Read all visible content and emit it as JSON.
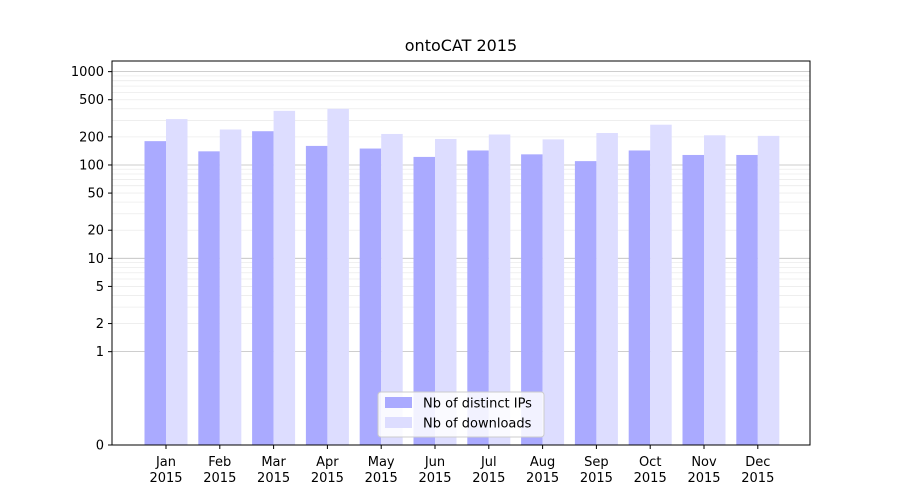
{
  "chart_data": {
    "type": "bar",
    "title": "ontoCAT 2015",
    "xlabel": "",
    "ylabel": "",
    "yscale": "symlog",
    "ylim": [
      0,
      1300
    ],
    "yticks": [
      0,
      1,
      2,
      5,
      10,
      20,
      50,
      100,
      200,
      500,
      1000
    ],
    "ytick_labels": [
      "0",
      "1",
      "2",
      "5",
      "10",
      "20",
      "50",
      "100",
      "200",
      "500",
      "1000"
    ],
    "categories": [
      "Jan\n2015",
      "Feb\n2015",
      "Mar\n2015",
      "Apr\n2015",
      "May\n2015",
      "Jun\n2015",
      "Jul\n2015",
      "Aug\n2015",
      "Sep\n2015",
      "Oct\n2015",
      "Nov\n2015",
      "Dec\n2015"
    ],
    "category_lines": [
      [
        "Jan",
        "2015"
      ],
      [
        "Feb",
        "2015"
      ],
      [
        "Mar",
        "2015"
      ],
      [
        "Apr",
        "2015"
      ],
      [
        "May",
        "2015"
      ],
      [
        "Jun",
        "2015"
      ],
      [
        "Jul",
        "2015"
      ],
      [
        "Aug",
        "2015"
      ],
      [
        "Sep",
        "2015"
      ],
      [
        "Oct",
        "2015"
      ],
      [
        "Nov",
        "2015"
      ],
      [
        "Dec",
        "2015"
      ]
    ],
    "series": [
      {
        "name": "Nb of distinct IPs",
        "color": "#aaaaff",
        "values": [
          180,
          140,
          230,
          160,
          150,
          122,
          143,
          130,
          110,
          143,
          128,
          128
        ]
      },
      {
        "name": "Nb of downloads",
        "color": "#ddddff",
        "values": [
          310,
          240,
          380,
          400,
          215,
          190,
          212,
          188,
          220,
          270,
          208,
          205
        ]
      }
    ],
    "grid": "y",
    "legend_position": "bottom-center"
  }
}
